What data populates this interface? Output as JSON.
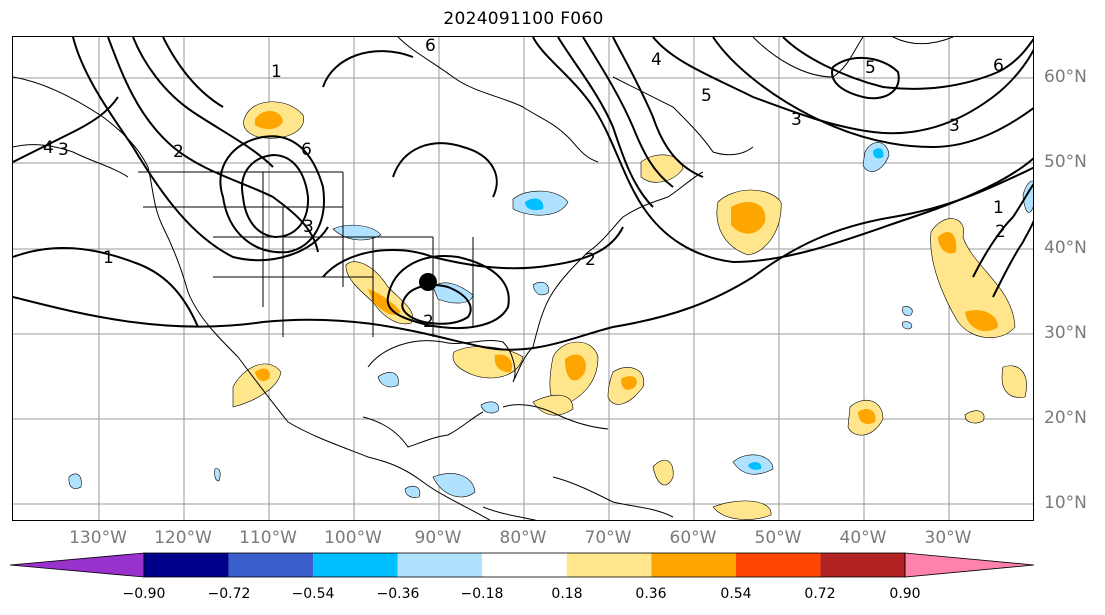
{
  "title": "2024091100 F060",
  "map": {
    "lat_labels": [
      "60°N",
      "50°N",
      "40°N",
      "30°N",
      "20°N",
      "10°N"
    ],
    "lon_labels": [
      "130°W",
      "120°W",
      "110°W",
      "100°W",
      "90°W",
      "80°W",
      "70°W",
      "60°W",
      "50°W",
      "40°W",
      "30°W"
    ],
    "contour_labels": [
      "1",
      "2",
      "3",
      "4",
      "5",
      "6"
    ],
    "marker": "storm-center-dot"
  },
  "colorbar": {
    "ticks": [
      "−0.90",
      "−0.72",
      "−0.54",
      "−0.36",
      "−0.18",
      "0.18",
      "0.36",
      "0.54",
      "0.72",
      "0.90"
    ],
    "colors": [
      "#9932cc",
      "#00008b",
      "#3a5fcd",
      "#00bfff",
      "#b0e2ff",
      "#ffffff",
      "#ffe68c",
      "#ffa500",
      "#ff4500",
      "#b22222",
      "#ff82ab"
    ]
  }
}
